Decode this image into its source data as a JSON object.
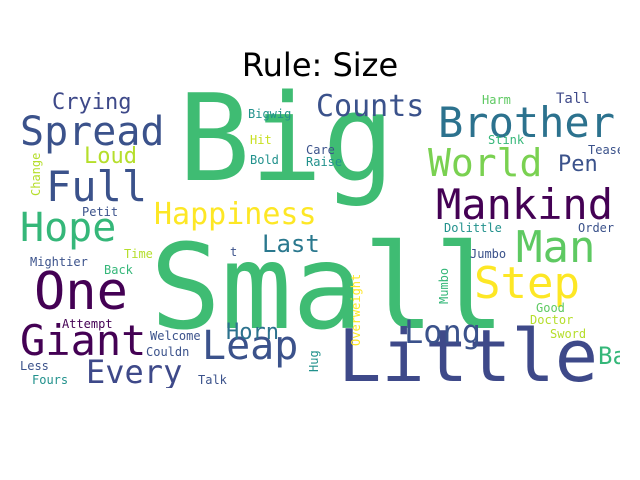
{
  "title": "Rule: Size",
  "cloud": {
    "words": [
      {
        "text": "Big",
        "color": "#3fbc73"
      },
      {
        "text": "Small",
        "color": "#3fbc73"
      },
      {
        "text": "Little",
        "color": "#3e4989"
      },
      {
        "text": "Brother",
        "color": "#2c728e"
      },
      {
        "text": "Spread",
        "color": "#3b528b"
      },
      {
        "text": "Counts",
        "color": "#3b528b"
      },
      {
        "text": "World",
        "color": "#7ad151"
      },
      {
        "text": "Mankind",
        "color": "#440154"
      },
      {
        "text": "Full",
        "color": "#3b528b"
      },
      {
        "text": "Hope",
        "color": "#35b779"
      },
      {
        "text": "Happiness",
        "color": "#fde725"
      },
      {
        "text": "One",
        "color": "#440154"
      },
      {
        "text": "Giant",
        "color": "#440154"
      },
      {
        "text": "Leap",
        "color": "#3b528b"
      },
      {
        "text": "Every",
        "color": "#3e4989"
      },
      {
        "text": "Man",
        "color": "#5ec962"
      },
      {
        "text": "Step",
        "color": "#fde725"
      },
      {
        "text": "Long",
        "color": "#3b528b"
      },
      {
        "text": "Last",
        "color": "#2a788e"
      },
      {
        "text": "Horn",
        "color": "#2c728e"
      },
      {
        "text": "Battle",
        "color": "#35b779"
      },
      {
        "text": "Crying",
        "color": "#3e4989"
      },
      {
        "text": "Loud",
        "color": "#b5de2b"
      },
      {
        "text": "Pen",
        "color": "#3b528b"
      },
      {
        "text": "Harm",
        "color": "#5ec962"
      },
      {
        "text": "Tall",
        "color": "#3e4989"
      },
      {
        "text": "Bigwig",
        "color": "#21918c"
      },
      {
        "text": "Stink",
        "color": "#35b779"
      },
      {
        "text": "Tease",
        "color": "#3b528b"
      },
      {
        "text": "Hit",
        "color": "#c8e020"
      },
      {
        "text": "Care",
        "color": "#3b528b"
      },
      {
        "text": "Bold",
        "color": "#21918c"
      },
      {
        "text": "Raise",
        "color": "#21918c"
      },
      {
        "text": "Change",
        "color": "#b5de2b"
      },
      {
        "text": "Petit",
        "color": "#3b528b"
      },
      {
        "text": "Dolittle",
        "color": "#21918c"
      },
      {
        "text": "Order",
        "color": "#3b528b"
      },
      {
        "text": "Time",
        "color": "#b5de2b"
      },
      {
        "text": "t",
        "color": "#3b528b"
      },
      {
        "text": "Jumbo",
        "color": "#3b528b"
      },
      {
        "text": "Mightier",
        "color": "#3b528b"
      },
      {
        "text": "Back",
        "color": "#35b779"
      },
      {
        "text": "Mumbo",
        "color": "#35b779"
      },
      {
        "text": "Good",
        "color": "#5ec962"
      },
      {
        "text": "Doctor",
        "color": "#b5de2b"
      },
      {
        "text": "Attempt",
        "color": "#440154"
      },
      {
        "text": "Welcome",
        "color": "#3b528b"
      },
      {
        "text": "Overweight",
        "color": "#fde725"
      },
      {
        "text": "Sword",
        "color": "#b5de2b"
      },
      {
        "text": "Hug",
        "color": "#21918c"
      },
      {
        "text": "Couldn",
        "color": "#3b528b"
      },
      {
        "text": "Less",
        "color": "#3b528b"
      },
      {
        "text": "Fours",
        "color": "#21918c"
      },
      {
        "text": "Talk",
        "color": "#3b528b"
      }
    ]
  }
}
